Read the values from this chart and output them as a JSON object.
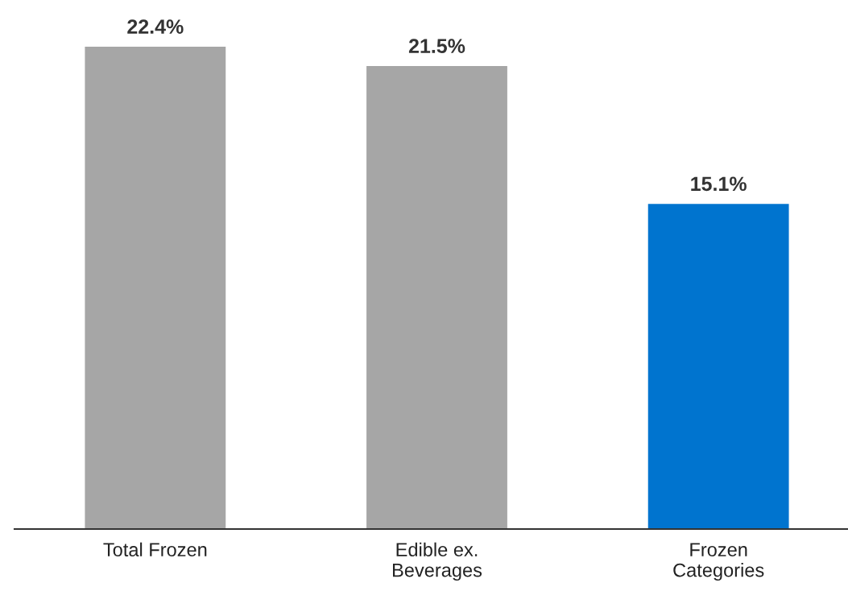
{
  "chart_data": {
    "type": "bar",
    "categories": [
      "Total Frozen",
      "Edible ex.\nBeverages",
      "Frozen\nCategories"
    ],
    "values": [
      22.4,
      21.5,
      15.1
    ],
    "colors": [
      "#a6a6a6",
      "#a6a6a6",
      "#0074cf"
    ],
    "value_labels": [
      "22.4%",
      "21.5%",
      "15.1%"
    ],
    "tick_labels": "x",
    "grid": false,
    "legend": false
  }
}
